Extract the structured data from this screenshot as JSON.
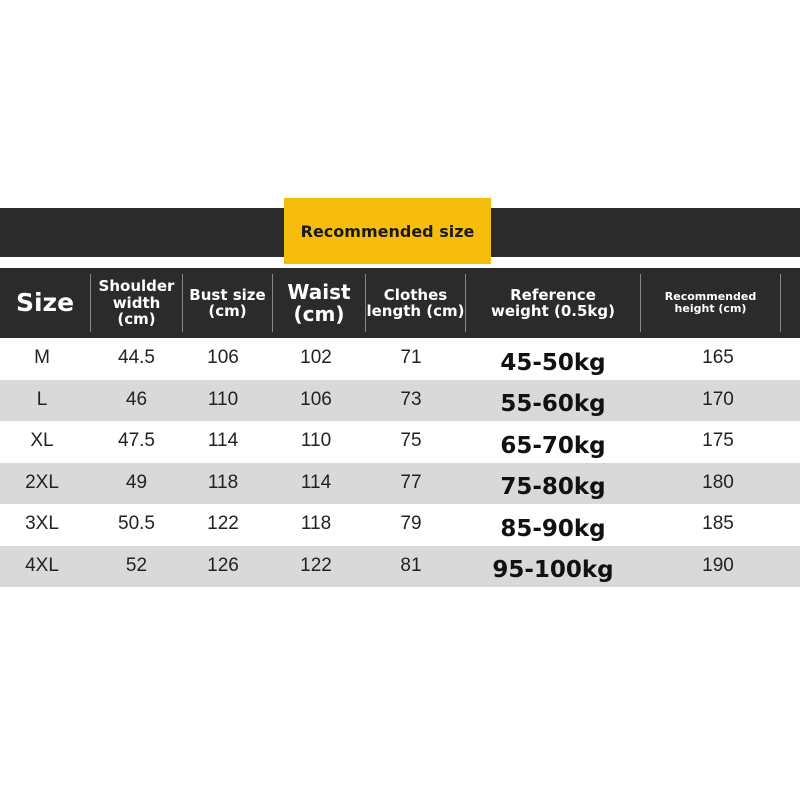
{
  "banner": {
    "title": "Recommended size",
    "accent": "#f6bd0c",
    "dark": "#2b2b2b"
  },
  "headers": [
    "Size",
    "Shoulder width (cm)",
    "Bust size (cm)",
    "Waist (cm)",
    "Clothes length (cm)",
    "Reference weight (0.5kg)",
    "Recommended height (cm)"
  ],
  "rows": [
    [
      "M",
      "44.5",
      "106",
      "102",
      "71",
      "45-50kg",
      "165"
    ],
    [
      "L",
      "46",
      "110",
      "106",
      "73",
      "55-60kg",
      "170"
    ],
    [
      "XL",
      "47.5",
      "114",
      "110",
      "75",
      "65-70kg",
      "175"
    ],
    [
      "2XL",
      "49",
      "118",
      "114",
      "77",
      "75-80kg",
      "180"
    ],
    [
      "3XL",
      "50.5",
      "122",
      "118",
      "79",
      "85-90kg",
      "185"
    ],
    [
      "4XL",
      "52",
      "126",
      "122",
      "81",
      "95-100kg",
      "190"
    ]
  ]
}
